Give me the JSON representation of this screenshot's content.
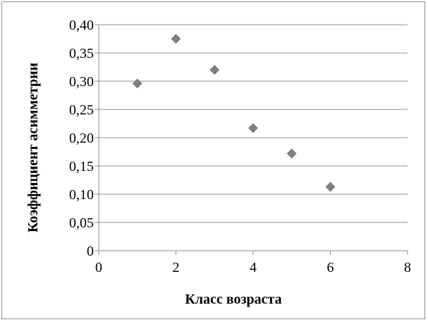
{
  "chart_data": {
    "type": "scatter",
    "title": "",
    "xlabel": "Класс возраста",
    "ylabel": "Коэффициент асимметрии",
    "x": [
      1,
      2,
      3,
      4,
      5,
      6
    ],
    "y": [
      0.296,
      0.375,
      0.32,
      0.217,
      0.172,
      0.113
    ],
    "xlim": [
      0,
      8
    ],
    "ylim": [
      0,
      0.4
    ],
    "x_ticks": [
      {
        "value": 0,
        "label": "0"
      },
      {
        "value": 2,
        "label": "2"
      },
      {
        "value": 4,
        "label": "4"
      },
      {
        "value": 6,
        "label": "6"
      },
      {
        "value": 8,
        "label": "8"
      }
    ],
    "y_ticks": [
      {
        "value": 0,
        "label": "0"
      },
      {
        "value": 0.05,
        "label": "0,05"
      },
      {
        "value": 0.1,
        "label": "0,10"
      },
      {
        "value": 0.15,
        "label": "0,15"
      },
      {
        "value": 0.2,
        "label": "0,20"
      },
      {
        "value": 0.25,
        "label": "0,25"
      },
      {
        "value": 0.3,
        "label": "0,30"
      },
      {
        "value": 0.35,
        "label": "0,35"
      },
      {
        "value": 0.4,
        "label": "0,40"
      }
    ],
    "grid": {
      "horizontal": true,
      "vertical": false
    },
    "marker": "diamond",
    "colors": {
      "marker": "#7f7f7f",
      "grid": "#8c8c8c",
      "axis": "#8c8c8c"
    }
  }
}
